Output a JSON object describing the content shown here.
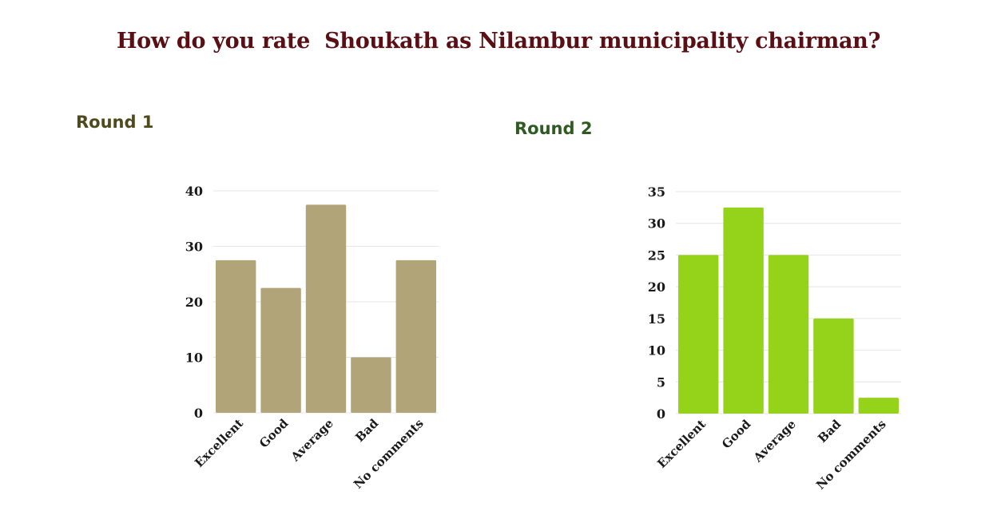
{
  "title": "How do you rate  Shoukath as Nilambur municipality chairman?",
  "chart_data": [
    {
      "type": "bar",
      "title": "Round 1",
      "categories": [
        "Excellent",
        "Good",
        "Average",
        "Bad",
        "No comments"
      ],
      "values": [
        27.5,
        22.5,
        37.5,
        10,
        27.5
      ],
      "ylim": [
        0,
        40
      ],
      "yticks": [
        0,
        10,
        20,
        30,
        40
      ],
      "grid": true,
      "color": "#b1a478"
    },
    {
      "type": "bar",
      "title": "Round 2",
      "categories": [
        "Excellent",
        "Good",
        "Average",
        "Bad",
        "No comments"
      ],
      "values": [
        25,
        32.5,
        25,
        15,
        2.5
      ],
      "ylim": [
        0,
        35
      ],
      "yticks": [
        0,
        5,
        10,
        15,
        20,
        25,
        30,
        35
      ],
      "grid": true,
      "color": "#94d31a"
    }
  ]
}
